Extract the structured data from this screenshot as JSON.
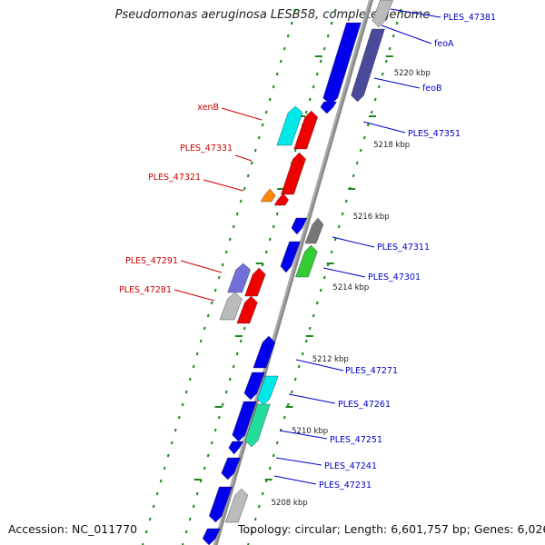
{
  "title": "Pseudomonas aeruginosa LESB58, complete genome",
  "accession": "Accession: NC_011770",
  "topology": "Topology: circular; Length: 6,601,757 bp; Genes: 6,026",
  "colors": {
    "backbone": "#888888",
    "tick": "#1a8a1a",
    "label_forward": "#0000cc",
    "label_reverse": "#cc0000",
    "gene_blue": "#0000ee",
    "gene_slate": "#4a4a9a",
    "gene_cyan": "#00e8e8",
    "gene_red": "#ee0000",
    "gene_orange": "#ff8800",
    "gene_gray": "#777777",
    "gene_green": "#33cc33",
    "gene_purple": "#7070d8",
    "gene_lightgray": "#bbbbbb",
    "gene_seagreen": "#22dd99"
  },
  "kbp_ticks": [
    {
      "label": "5220 kbp",
      "pos": 5220
    },
    {
      "label": "5218 kbp",
      "pos": 5218
    },
    {
      "label": "5216 kbp",
      "pos": 5216
    },
    {
      "label": "5214 kbp",
      "pos": 5214
    },
    {
      "label": "5212 kbp",
      "pos": 5212
    },
    {
      "label": "5210 kbp",
      "pos": 5210
    },
    {
      "label": "5208 kbp",
      "pos": 5208
    }
  ],
  "genes_forward": [
    {
      "label": "PLES_47381",
      "color": "gene_lightgray"
    },
    {
      "label": "feoA",
      "color": "gene_slate"
    },
    {
      "label": "feoB",
      "color": "gene_slate"
    },
    {
      "label": "PLES_47351",
      "color": "gene_blue"
    },
    {
      "label": "PLES_47311",
      "color": "gene_gray"
    },
    {
      "label": "PLES_47301",
      "color": "gene_green"
    },
    {
      "label": "PLES_47271",
      "color": "gene_blue"
    },
    {
      "label": "PLES_47261",
      "color": "gene_cyan"
    },
    {
      "label": "PLES_47251",
      "color": "gene_seagreen"
    },
    {
      "label": "PLES_47241",
      "color": "gene_blue"
    },
    {
      "label": "PLES_47231",
      "color": "gene_blue"
    }
  ],
  "genes_reverse": [
    {
      "label": "xenB",
      "color": "gene_cyan"
    },
    {
      "label": "PLES_47331",
      "color": "gene_red"
    },
    {
      "label": "PLES_47321",
      "color": "gene_orange"
    },
    {
      "label": "PLES_47291",
      "color": "gene_purple"
    },
    {
      "label": "PLES_47281",
      "color": "gene_lightgray"
    }
  ]
}
